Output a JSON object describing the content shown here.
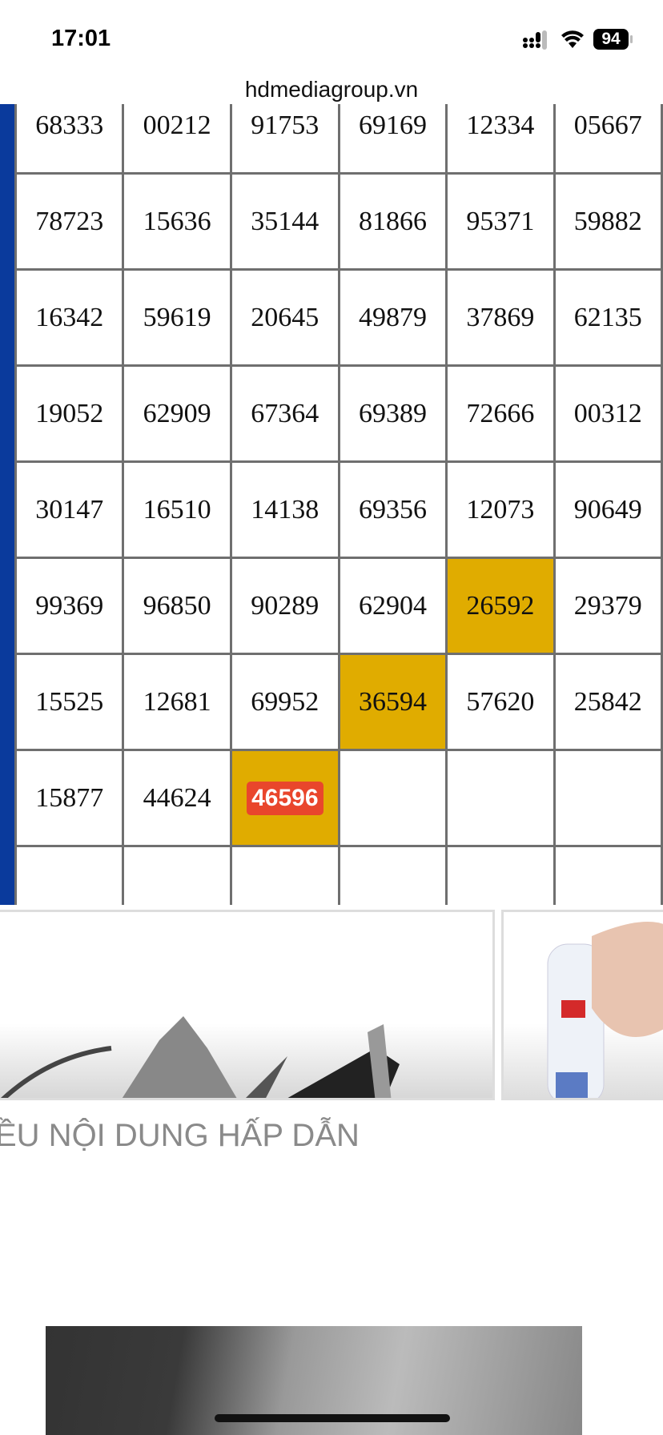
{
  "status_bar": {
    "time": "17:01",
    "battery": "94"
  },
  "browser": {
    "url": "hdmediagroup.vn"
  },
  "results_table": {
    "rows": [
      [
        "68333",
        "00212",
        "91753",
        "69169",
        "12334",
        "05667"
      ],
      [
        "78723",
        "15636",
        "35144",
        "81866",
        "95371",
        "59882"
      ],
      [
        "16342",
        "59619",
        "20645",
        "49879",
        "37869",
        "62135"
      ],
      [
        "19052",
        "62909",
        "67364",
        "69389",
        "72666",
        "00312"
      ],
      [
        "30147",
        "16510",
        "14138",
        "69356",
        "12073",
        "90649"
      ],
      [
        "99369",
        "96850",
        "90289",
        "62904",
        "26592",
        "29379"
      ],
      [
        "15525",
        "12681",
        "69952",
        "36594",
        "57620",
        "25842"
      ],
      [
        "15877",
        "44624",
        "46596",
        "",
        "",
        ""
      ],
      [
        "",
        "",
        "",
        "",
        "",
        ""
      ]
    ],
    "highlighted": [
      [
        5,
        4
      ],
      [
        6,
        3
      ],
      [
        7,
        2
      ]
    ],
    "latest": [
      7,
      2
    ],
    "colors": {
      "highlight": "#e0ac00",
      "latest_badge": "#e9462c",
      "side_bar": "#0a3a9c"
    }
  },
  "section": {
    "heading": "ỀU NỘI DUNG HẤP DẪN"
  }
}
